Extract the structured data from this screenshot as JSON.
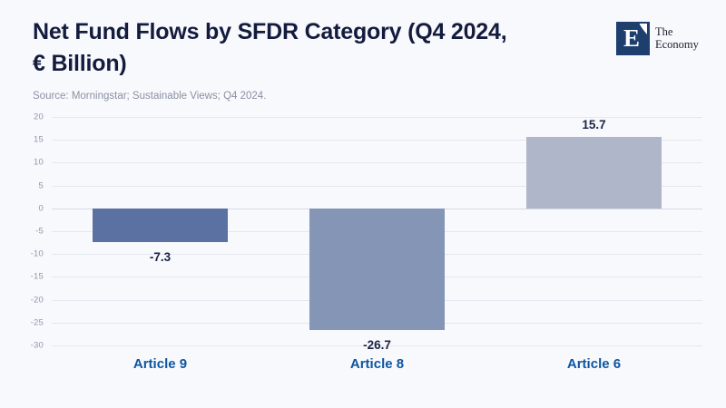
{
  "header": {
    "title": "Net Fund Flows by SFDR Category (Q4 2024, € Billion)",
    "title_line1": "Net Fund Flows by SFDR Category (Q4 2024,",
    "title_line2": "€ Billion)",
    "source": "Source: Morningstar; Sustainable Views; Q4 2024.",
    "logo": {
      "mark": "E",
      "name_line1": "The",
      "name_line2": "Economy"
    }
  },
  "chart_data": {
    "type": "bar",
    "title": "Net Fund Flows by SFDR Category (Q4 2024, € Billion)",
    "categories": [
      "Article 9",
      "Article 8",
      "Article 6"
    ],
    "values": [
      -7.3,
      -26.7,
      15.7
    ],
    "value_labels": [
      "-7.3",
      "-26.7",
      "15.7"
    ],
    "bar_colors": [
      "#5b71a1",
      "#8495b5",
      "#afb6ca"
    ],
    "xlabel": "",
    "ylabel": "",
    "ylim": [
      -30,
      20
    ],
    "ytick_step": 5,
    "yticks": [
      20,
      15,
      10,
      5,
      0,
      -5,
      -10,
      -15,
      -20,
      -25,
      -30
    ],
    "grid": true,
    "legend_position": "none"
  },
  "colors": {
    "background": "#f8f9fd",
    "title_text": "#141c3e",
    "source_text": "#8a90a3",
    "tick_text": "#8f97ac",
    "value_label_text": "#1b2444",
    "category_label_text": "#0d55a1",
    "gridline": "#e4e7ef",
    "zero_line": "#d4d8e1",
    "logo_box": "#1e3e6d"
  }
}
